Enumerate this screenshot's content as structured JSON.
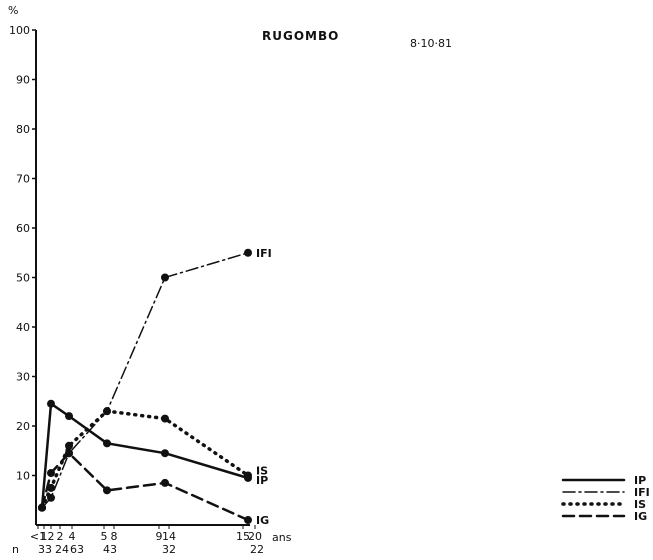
{
  "chart_data": {
    "type": "line",
    "title": "RUGOMBO",
    "date": "8·10·81",
    "ylabel": "%",
    "ylim": [
      0,
      100
    ],
    "yticks": [
      10,
      20,
      30,
      40,
      50,
      60,
      70,
      80,
      90,
      100
    ],
    "x_unit": "ans",
    "n_label": "n",
    "categories": [
      {
        "age": "<1",
        "n": "33"
      },
      {
        "age": "1-2",
        "n": "24"
      },
      {
        "age": "2-4",
        "n": "63"
      },
      {
        "age": "5-8",
        "n": "43"
      },
      {
        "age": "9-14",
        "n": "32"
      },
      {
        "age": "15-20",
        "n": "22"
      }
    ],
    "age_tick_labels": [
      "<1",
      "1",
      "2",
      "2",
      "4",
      "5",
      "8",
      "9",
      "14",
      "15",
      "20"
    ],
    "n_tick_labels": [
      "33",
      "24",
      "63",
      "43",
      "32",
      "22"
    ],
    "series": [
      {
        "name": "IP",
        "end_label": "IP",
        "style": "solid",
        "x": [
          0.5,
          1.5,
          3,
          6.5,
          11.5,
          17.5
        ],
        "values": [
          3.5,
          24.5,
          22,
          16.5,
          14.5,
          9.5
        ]
      },
      {
        "name": "IFI",
        "end_label": "IFI",
        "style": "dashdot",
        "x": [
          0.5,
          1.5,
          3,
          6.5,
          11.5,
          17.5
        ],
        "values": [
          3.5,
          5.5,
          14.5,
          23,
          50,
          55
        ]
      },
      {
        "name": "IS",
        "end_label": "IS",
        "style": "dotted",
        "x": [
          0.5,
          1.5,
          3,
          6.5,
          11.5,
          17.5
        ],
        "values": [
          3.5,
          7.5,
          16,
          23,
          21.5,
          10
        ]
      },
      {
        "name": "IG",
        "end_label": "IG",
        "style": "dashed",
        "x": [
          0.5,
          1.5,
          3,
          6.5,
          11.5,
          17.5
        ],
        "values": [
          3.5,
          10.5,
          14.5,
          7,
          8.5,
          1
        ]
      }
    ],
    "grid": false,
    "legend_position": "bottom-right",
    "legend": [
      {
        "label": "IP",
        "style": "solid"
      },
      {
        "label": "IFI",
        "style": "dashdot"
      },
      {
        "label": "IS",
        "style": "dotted"
      },
      {
        "label": "IG",
        "style": "dashed"
      }
    ]
  }
}
